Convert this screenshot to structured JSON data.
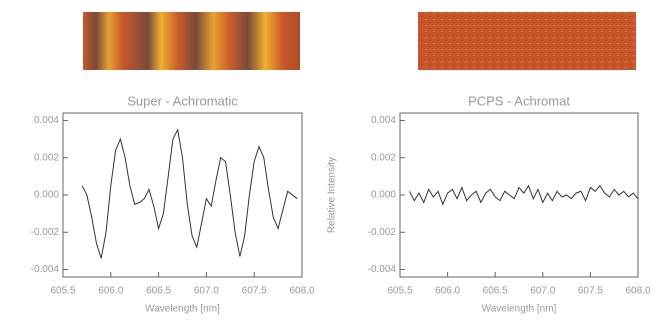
{
  "chart_data": [
    {
      "type": "line",
      "title": "Super - Achromatic",
      "x_label": "Wavelength [nm]",
      "color": "#333333",
      "xlim": [
        605.5,
        608
      ],
      "ylim": [
        -0.0044,
        0.0044
      ],
      "xticks": [
        605.5,
        {
          "value": 606,
          "label": "606.0"
        },
        606.5,
        {
          "value": 607,
          "label": "607.0"
        },
        607.5,
        {
          "value": 608,
          "label": "608.0"
        }
      ],
      "yticks": [
        0.004,
        0.002,
        {
          "value": 0,
          "label": "0.000"
        },
        -0.002,
        -0.004
      ],
      "x": [
        605.7,
        605.75,
        605.8,
        605.85,
        605.9,
        605.95,
        606,
        606.05,
        606.1,
        606.15,
        606.2,
        606.25,
        606.3,
        606.35,
        606.4,
        606.45,
        606.5,
        606.55,
        606.6,
        606.65,
        606.7,
        606.75,
        606.8,
        606.85,
        606.9,
        606.95,
        607,
        607.05,
        607.1,
        607.15,
        607.2,
        607.25,
        607.3,
        607.35,
        607.4,
        607.45,
        607.5,
        607.55,
        607.6,
        607.65,
        607.7,
        607.75,
        607.8,
        607.85,
        607.9,
        607.95
      ],
      "values": [
        0.0005,
        0,
        -0.0012,
        -0.0026,
        -0.0034,
        -0.002,
        0.0005,
        0.0024,
        0.003,
        0.002,
        0.0005,
        -0.0005,
        -0.0004,
        -0.0002,
        0.0003,
        -0.0006,
        -0.0018,
        -0.001,
        0.001,
        0.003,
        0.0035,
        0.002,
        -0.0005,
        -0.0022,
        -0.0028,
        -0.0015,
        -0.0002,
        -0.0006,
        0.0008,
        0.002,
        0.0018,
        0,
        -0.002,
        -0.0033,
        -0.0022,
        0,
        0.0018,
        0.0026,
        0.002,
        0.0003,
        -0.0012,
        -0.0018,
        -0.0008,
        0.0002,
        0,
        -0.0002
      ]
    },
    {
      "type": "line",
      "title": "PCPS - Achromat",
      "x_label": "Wavelength [nm]",
      "y_label": "Relative Intensity",
      "color": "#333333",
      "xlim": [
        605.5,
        608
      ],
      "ylim": [
        -0.0044,
        0.0044
      ],
      "xticks": [
        605.5,
        {
          "value": 606,
          "label": "606.0"
        },
        606.5,
        {
          "value": 607,
          "label": "607.0"
        },
        607.5,
        {
          "value": 608,
          "label": "608.0"
        }
      ],
      "yticks": [
        0.004,
        0.002,
        {
          "value": 0,
          "label": "0.000"
        },
        -0.002,
        -0.004
      ],
      "x": [
        605.6,
        605.65,
        605.7,
        605.75,
        605.8,
        605.85,
        605.9,
        605.95,
        606,
        606.05,
        606.1,
        606.15,
        606.2,
        606.25,
        606.3,
        606.35,
        606.4,
        606.45,
        606.5,
        606.55,
        606.6,
        606.65,
        606.7,
        606.75,
        606.8,
        606.85,
        606.9,
        606.95,
        607,
        607.05,
        607.1,
        607.15,
        607.2,
        607.25,
        607.3,
        607.35,
        607.4,
        607.45,
        607.5,
        607.55,
        607.6,
        607.65,
        607.7,
        607.75,
        607.8,
        607.85,
        607.9,
        607.95,
        608
      ],
      "values": [
        0.0002,
        -0.0003,
        0.0001,
        -0.0004,
        0.0003,
        -0.0001,
        0.0002,
        -0.0005,
        0.0001,
        0.0003,
        -0.0002,
        0.0004,
        -0.0003,
        0,
        0.0002,
        -0.0004,
        0.0001,
        0.0003,
        -0.0001,
        -0.0003,
        0.0002,
        0,
        -0.0002,
        0.0004,
        0.0001,
        0.0005,
        -0.0002,
        0.0003,
        -0.0004,
        0.0001,
        -0.0003,
        0.0002,
        -0.0001,
        0,
        -0.0002,
        0.0001,
        0.0002,
        -0.0003,
        0.0004,
        0.0002,
        0.0005,
        0.0001,
        -0.0001,
        0.0003,
        0,
        0.0002,
        -0.0001,
        0.0001,
        -0.0002
      ]
    }
  ]
}
